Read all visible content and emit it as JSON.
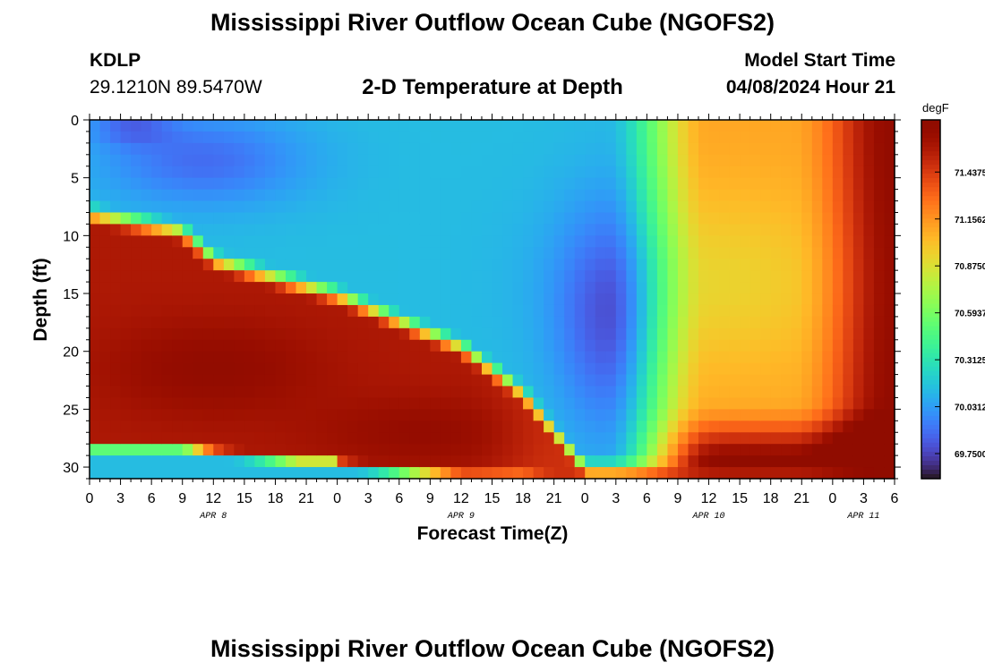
{
  "title": "Mississippi River Outflow Ocean Cube (NGOFS2)",
  "footer_title": "Mississippi River Outflow Ocean Cube (NGOFS2)",
  "station": {
    "id": "KDLP",
    "coords": "29.1210N  89.5470W"
  },
  "subtitle": "2-D Temperature at Depth",
  "model_start": {
    "label": "Model Start Time",
    "value": "04/08/2024 Hour 21"
  },
  "chart_data": {
    "type": "heatmap",
    "xlabel": "Forecast Time(Z)",
    "ylabel": "Depth (ft)",
    "ylim": [
      0,
      31
    ],
    "y_ticks": [
      0,
      5,
      10,
      15,
      20,
      25,
      30
    ],
    "x_tick_labels": [
      "0",
      "3",
      "6",
      "9",
      "12",
      "15",
      "18",
      "21",
      "0",
      "3",
      "6",
      "9",
      "12",
      "15",
      "18",
      "21",
      "0",
      "3",
      "6",
      "9",
      "12",
      "15",
      "18",
      "21",
      "0",
      "3",
      "6"
    ],
    "day_labels": [
      "APR 8",
      "APR 9",
      "APR 10",
      "APR 11"
    ],
    "xlim_hours": [
      0,
      78
    ],
    "colorbar": {
      "unit": "degF",
      "range": [
        69.6,
        71.75
      ],
      "tick_labels": [
        "71.4375",
        "71.1562",
        "70.8750",
        "70.5937",
        "70.3125",
        "70.0312",
        "69.7500"
      ],
      "colormap": "turbo"
    },
    "depth_profile_points": [
      {
        "hour": 0,
        "hot_top": 8.5,
        "hot_bottom": 28.0
      },
      {
        "hour": 9,
        "hot_top": 10.0,
        "hot_bottom": 28.0
      },
      {
        "hour": 12,
        "hot_top": 12.5,
        "hot_bottom": 28.5
      },
      {
        "hour": 24,
        "hot_top": 15.5,
        "hot_bottom": 29.5
      },
      {
        "hour": 36,
        "hot_top": 20.0,
        "hot_bottom": 30.5
      },
      {
        "hour": 42,
        "hot_top": 24.0,
        "hot_bottom": 30.5
      },
      {
        "hour": 48,
        "hot_top": 30.5,
        "hot_bottom": 31.0
      }
    ]
  }
}
